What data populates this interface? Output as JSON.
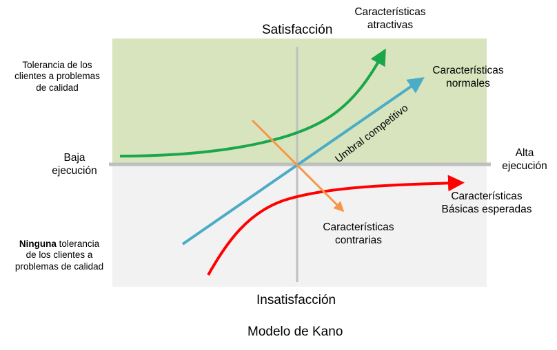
{
  "diagram": {
    "axes": {
      "top": "Satisfacción",
      "bottom": "Insatisfacción",
      "left": [
        "Baja",
        "ejecución"
      ],
      "right": [
        "Alta",
        "ejecución"
      ]
    },
    "left_notes": {
      "top": [
        "Tolerancia de los",
        "clientes a problemas",
        "de calidad"
      ],
      "bottom_bold": "Ninguna",
      "bottom_rest": " tolerancia",
      "bottom_lines": [
        "de los clientes a",
        "problemas  de calidad"
      ]
    },
    "curves": {
      "attractive": [
        "Características",
        "atractivas"
      ],
      "normal": [
        "Características",
        "normales"
      ],
      "basic": [
        "Características",
        "Básicas  esperadas"
      ],
      "contrary": [
        "Características",
        "contrarias"
      ],
      "threshold": "Umbral competitivo"
    },
    "caption": "Modelo de Kano",
    "colors": {
      "upper_region": "#d7e4bd",
      "lower_region": "#f2f2f2",
      "axis": "#bfbfbf",
      "attractive": "#1aa64b",
      "normal": "#4bacc6",
      "basic": "#ff0000",
      "contrary": "#f79646"
    }
  }
}
